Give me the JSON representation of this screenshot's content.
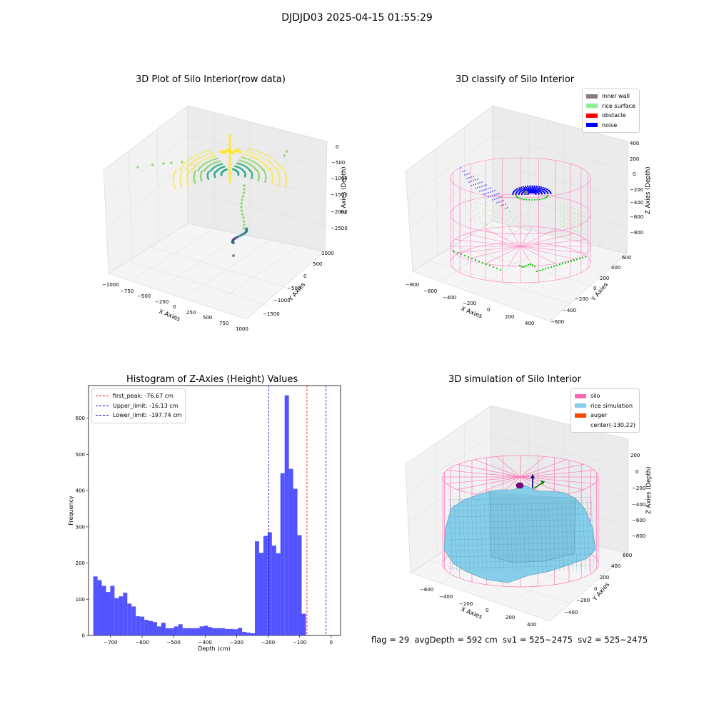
{
  "suptitle": "DJDJD03 2025-04-15 01:55:29",
  "footer": "flag = 29  avgDepth = 592 cm  sv1 = 525~2475  sv2 = 525~2475",
  "chart_data": [
    {
      "type": "scatter",
      "title": "3D Plot of Silo Interior(row data)",
      "xlabel": "X Axies",
      "ylabel": "Y Axies",
      "zlabel": "Z Axies (Depth)",
      "xticks": [
        "−1000",
        "−750",
        "−500",
        "−250",
        "0",
        "250",
        "500",
        "750",
        "1000"
      ],
      "yticks": [
        "1000",
        "500",
        "0",
        "−500",
        "−1000",
        "−1500"
      ],
      "zticks": [
        "0",
        "−500",
        "−1000",
        "−1500",
        "−2000",
        "−2500"
      ],
      "colormap": [
        "#fde725",
        "#7ad151",
        "#22a884",
        "#2a788e",
        "#414487"
      ]
    },
    {
      "type": "scatter",
      "title": "3D classify of Silo Interior",
      "xlabel": "X Axies",
      "ylabel": "Y Axies",
      "zlabel": "Z Axies (Depth)",
      "xticks": [
        "−800",
        "−600",
        "−400",
        "−200",
        "0",
        "200",
        "400"
      ],
      "yticks": [
        "600",
        "400",
        "200",
        "0",
        "−200",
        "−400",
        "−600"
      ],
      "zticks": [
        "400",
        "200",
        "0",
        "−200",
        "−400",
        "−600",
        "−800"
      ],
      "legend": [
        {
          "label": "inner wall",
          "color": "#808080"
        },
        {
          "label": "rice surface",
          "color": "#90ee90"
        },
        {
          "label": "obstacle",
          "color": "#ff0000"
        },
        {
          "label": "noise",
          "color": "#0000ff"
        }
      ],
      "legend_position": "top-right"
    },
    {
      "type": "bar",
      "title": "Histogram of Z-Axies (Height) Values",
      "xlabel": "Depth (cm)",
      "ylabel": "Frequency",
      "xlim": [
        -770,
        30
      ],
      "ylim": [
        0,
        690
      ],
      "xticks": [
        -700,
        -600,
        -500,
        -400,
        -300,
        -200,
        -100,
        0
      ],
      "yticks": [
        0,
        100,
        200,
        300,
        400,
        500,
        600
      ],
      "bar_color": "#4a4aff",
      "bins_start": -755,
      "bin_width": 13.5,
      "values": [
        163,
        153,
        137,
        120,
        137,
        103,
        108,
        118,
        88,
        80,
        53,
        52,
        43,
        40,
        37,
        25,
        35,
        20,
        20,
        25,
        31,
        20,
        20,
        20,
        20,
        25,
        27,
        23,
        20,
        20,
        20,
        18,
        18,
        17,
        21,
        10,
        8,
        6,
        260,
        228,
        275,
        285,
        248,
        227,
        448,
        663,
        460,
        405,
        277,
        60
      ],
      "lines": [
        {
          "label": "first_peak: -76.67 cm",
          "x": -76.67,
          "color": "#ff0000"
        },
        {
          "label": "Upper_limit: -16.13 cm",
          "x": -16.13,
          "color": "#0000cc"
        },
        {
          "label": "Lower_limit: -197.74 cm",
          "x": -197.74,
          "color": "#0000cc"
        }
      ],
      "legend_position": "top-left"
    },
    {
      "type": "surface",
      "title": "3D simulation of Silo Interior",
      "xlabel": "X Axies",
      "ylabel": "Y Axies",
      "zlabel": "Z Axies (Depth)",
      "xticks": [
        "−600",
        "−400",
        "−200",
        "0",
        "200",
        "400"
      ],
      "yticks": [
        "600",
        "400",
        "200",
        "0",
        "−200",
        "−400"
      ],
      "zticks": [
        "200",
        "0",
        "−200",
        "−400",
        "−600",
        "−800"
      ],
      "legend": [
        {
          "label": "silo",
          "color": "#ff69b4"
        },
        {
          "label": "rice simulation",
          "color": "#87ceeb"
        },
        {
          "label": "auger",
          "color": "#ff4500"
        },
        {
          "label": "center(-130,22)",
          "color": ""
        }
      ],
      "legend_position": "top-right"
    }
  ]
}
